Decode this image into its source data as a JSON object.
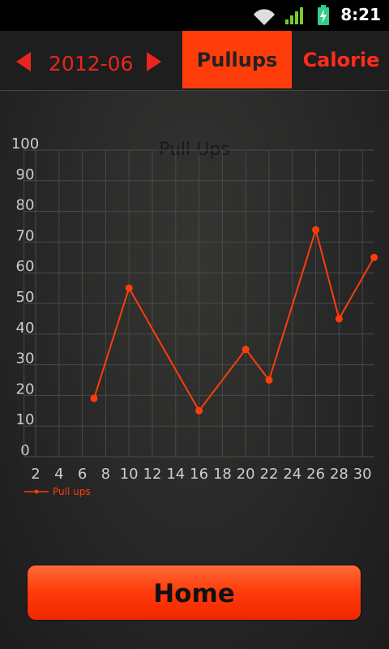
{
  "status_bar": {
    "time": "8:21"
  },
  "header": {
    "month": "2012-06",
    "tabs": [
      "Pullups",
      "Calorie"
    ]
  },
  "chart_data": {
    "type": "line",
    "title": "Pull Ups",
    "x": [
      7,
      10,
      16,
      20,
      22,
      26,
      28,
      31
    ],
    "series": [
      {
        "name": "Pull ups",
        "color": "#ff3d0a",
        "values": [
          19,
          55,
          15,
          35,
          25,
          74,
          45,
          65
        ]
      }
    ],
    "xlim": [
      1,
      31
    ],
    "xticks": [
      2,
      4,
      6,
      8,
      10,
      12,
      14,
      16,
      18,
      20,
      22,
      24,
      26,
      28,
      30
    ],
    "ylim": [
      0,
      100
    ],
    "yticks": [
      0,
      10,
      20,
      30,
      40,
      50,
      60,
      70,
      80,
      90,
      100
    ],
    "grid": true
  },
  "button": {
    "label": "Home"
  }
}
